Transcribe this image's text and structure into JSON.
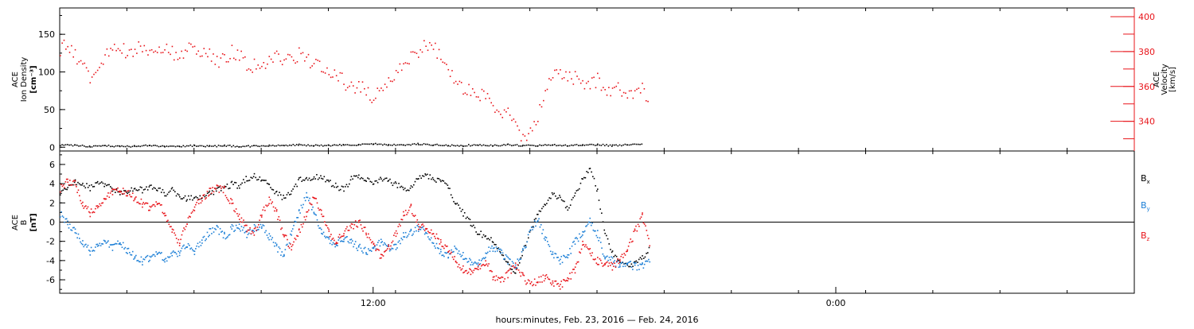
{
  "colors": {
    "black": "#000000",
    "red": "#e8141a",
    "blue": "#1c7fd6"
  },
  "xlabel": "hours:minutes, Feb. 23, 2016 — Feb. 24, 2016",
  "chart_data": [
    {
      "type": "scatter",
      "ylabel_lines": [
        "ACE",
        "Ion Density"
      ],
      "ylabel_unit": "[cm⁻³]",
      "yticks": [
        0,
        50,
        100,
        150
      ],
      "ylim": [
        -5,
        185
      ],
      "y2label_lines": [
        "ACE",
        "Velocity",
        "[km/s]"
      ],
      "y2ticks": [
        340,
        360,
        380,
        400
      ],
      "y2lim": [
        323,
        405
      ],
      "xticks": [
        "12:00",
        "0:00"
      ],
      "series": [
        {
          "color": "black",
          "axis": "left",
          "x": [
            0,
            1,
            2,
            3,
            4,
            5,
            6,
            7,
            8,
            9,
            10,
            11,
            12,
            13,
            14,
            15,
            16,
            17,
            18,
            19,
            20,
            21,
            22,
            23,
            24,
            25,
            26,
            27,
            28,
            29,
            30,
            31,
            32,
            33,
            34,
            35,
            36,
            37,
            38,
            39
          ],
          "y": [
            4,
            3,
            2,
            3,
            2,
            2,
            3,
            2,
            2,
            3,
            2,
            3,
            2,
            2,
            3,
            3,
            4,
            3,
            3,
            4,
            4,
            5,
            4,
            4,
            5,
            4,
            3,
            3,
            4,
            3,
            4,
            3,
            3,
            4,
            3,
            4,
            4,
            3,
            4,
            5
          ]
        },
        {
          "color": "red",
          "axis": "right",
          "x": [
            0,
            0.5,
            1,
            1.5,
            2,
            2.5,
            3,
            3.5,
            4,
            4.5,
            5,
            5.5,
            6,
            6.5,
            7,
            7.5,
            8,
            8.5,
            9,
            9.5,
            10,
            10.5,
            11,
            11.5,
            12,
            12.5,
            13,
            13.5,
            14,
            14.5,
            15,
            15.5,
            16,
            16.5,
            17,
            17.5,
            18,
            18.5,
            19,
            19.5,
            20,
            20.5,
            21,
            21.5,
            22,
            22.5,
            23,
            23.5,
            24,
            24.5,
            25,
            25.5,
            26,
            26.5,
            27,
            27.5,
            28,
            28.5,
            29,
            29.5,
            30,
            30.5,
            31,
            31.5,
            32,
            32.5,
            33,
            33.5,
            34,
            34.5,
            35,
            35.5,
            36,
            36.5,
            37,
            37.5,
            38,
            38.5,
            39,
            39.5
          ],
          "y": [
            382,
            385,
            378,
            372,
            366,
            370,
            378,
            384,
            382,
            380,
            382,
            384,
            380,
            382,
            384,
            380,
            378,
            382,
            383,
            381,
            378,
            375,
            376,
            380,
            378,
            373,
            372,
            374,
            375,
            377,
            376,
            376,
            379,
            376,
            374,
            370,
            366,
            368,
            363,
            360,
            361,
            358,
            352,
            360,
            364,
            368,
            374,
            377,
            380,
            384,
            383,
            376,
            370,
            364,
            360,
            359,
            357,
            353,
            350,
            346,
            344,
            338,
            331,
            334,
            342,
            360,
            366,
            368,
            366,
            365,
            363,
            361,
            364,
            360,
            356,
            360,
            354,
            356,
            360,
            352
          ]
        }
      ]
    },
    {
      "type": "scatter",
      "ylabel_lines": [
        "ACE",
        "B"
      ],
      "ylabel_unit": "[nT]",
      "yticks": [
        -6,
        -4,
        -2,
        0,
        2,
        4,
        6
      ],
      "ylim": [
        -7.4,
        7.4
      ],
      "xticks": [
        "12:00",
        "0:00"
      ],
      "legend": [
        "Bx",
        "By",
        "Bz"
      ],
      "series": [
        {
          "name": "Bx",
          "color": "black",
          "x": [
            0,
            0.5,
            1,
            1.5,
            2,
            2.5,
            3,
            3.5,
            4,
            4.5,
            5,
            5.5,
            6,
            6.5,
            7,
            7.5,
            8,
            8.5,
            9,
            9.5,
            10,
            10.5,
            11,
            11.5,
            12,
            12.5,
            13,
            13.5,
            14,
            14.5,
            15,
            15.5,
            16,
            16.5,
            17,
            17.5,
            18,
            18.5,
            19,
            19.5,
            20,
            20.5,
            21,
            21.5,
            22,
            22.5,
            23,
            23.5,
            24,
            24.5,
            25,
            25.5,
            26,
            26.5,
            27,
            27.5,
            28,
            28.5,
            29,
            29.5,
            30,
            30.5,
            31,
            31.5,
            32,
            32.5,
            33,
            33.5,
            34,
            34.5,
            35,
            35.5,
            36,
            36.5,
            37,
            37.5,
            38,
            38.5,
            39,
            39.5
          ],
          "y": [
            3.2,
            3.8,
            4.2,
            4.0,
            3.6,
            4.3,
            4.0,
            3.5,
            3.0,
            3.2,
            3.6,
            3.4,
            3.8,
            3.5,
            3.0,
            3.4,
            2.8,
            2.5,
            2.6,
            2.8,
            3.0,
            3.4,
            3.6,
            4.0,
            3.8,
            4.6,
            4.8,
            4.6,
            3.8,
            3.0,
            2.6,
            3.2,
            4.4,
            4.6,
            4.8,
            4.7,
            4.2,
            3.8,
            3.4,
            4.6,
            4.8,
            4.5,
            4.0,
            4.6,
            4.3,
            4.0,
            3.5,
            3.6,
            4.8,
            5.0,
            4.6,
            4.3,
            3.6,
            2.0,
            1.0,
            0.0,
            -1.0,
            -1.4,
            -2.0,
            -3.0,
            -4.4,
            -5.4,
            -3.0,
            -1.0,
            1.0,
            2.0,
            3.0,
            2.5,
            1.5,
            2.8,
            4.5,
            5.8,
            3.2,
            -1.0,
            -3.2,
            -4.0,
            -4.4,
            -4.2,
            -3.6,
            -2.8
          ]
        },
        {
          "name": "By",
          "color": "blue",
          "x": [
            0,
            0.5,
            1,
            1.5,
            2,
            2.5,
            3,
            3.5,
            4,
            4.5,
            5,
            5.5,
            6,
            6.5,
            7,
            7.5,
            8,
            8.5,
            9,
            9.5,
            10,
            10.5,
            11,
            11.5,
            12,
            12.5,
            13,
            13.5,
            14,
            14.5,
            15,
            15.5,
            16,
            16.5,
            17,
            17.5,
            18,
            18.5,
            19,
            19.5,
            20,
            20.5,
            21,
            21.5,
            22,
            22.5,
            23,
            23.5,
            24,
            24.5,
            25,
            25.5,
            26,
            26.5,
            27,
            27.5,
            28,
            28.5,
            29,
            29.5,
            30,
            30.5,
            31,
            31.5,
            32,
            32.5,
            33,
            33.5,
            34,
            34.5,
            35,
            35.5,
            36,
            36.5,
            37,
            37.5,
            38,
            38.5,
            39,
            39.5
          ],
          "y": [
            1.0,
            0.0,
            -1.0,
            -2.0,
            -3.0,
            -2.4,
            -2.0,
            -2.6,
            -2.0,
            -3.0,
            -3.5,
            -4.0,
            -3.6,
            -3.0,
            -3.8,
            -3.4,
            -3.0,
            -2.4,
            -3.0,
            -1.8,
            -1.0,
            -0.6,
            -1.4,
            -0.6,
            -0.4,
            -1.2,
            -0.6,
            -0.2,
            -1.4,
            -2.6,
            -3.4,
            -1.0,
            1.0,
            3.0,
            1.0,
            -1.0,
            -1.8,
            -2.2,
            -1.6,
            -2.0,
            -2.6,
            -3.0,
            -2.6,
            -2.0,
            -2.6,
            -2.4,
            -1.4,
            -1.0,
            -0.6,
            -1.0,
            -2.0,
            -3.0,
            -3.6,
            -2.6,
            -3.4,
            -4.0,
            -4.2,
            -3.2,
            -2.6,
            -3.0,
            -4.0,
            -4.6,
            -3.0,
            -1.0,
            0.4,
            -1.6,
            -3.2,
            -4.0,
            -3.4,
            -2.0,
            -1.0,
            0.2,
            -1.2,
            -3.6,
            -4.0,
            -4.4,
            -4.2,
            -4.6,
            -4.4,
            -4.0
          ]
        },
        {
          "name": "Bz",
          "color": "red",
          "x": [
            0,
            0.5,
            1,
            1.5,
            2,
            2.5,
            3,
            3.5,
            4,
            4.5,
            5,
            5.5,
            6,
            6.5,
            7,
            7.5,
            8,
            8.5,
            9,
            9.5,
            10,
            10.5,
            11,
            11.5,
            12,
            12.5,
            13,
            13.5,
            14,
            14.5,
            15,
            15.5,
            16,
            16.5,
            17,
            17.5,
            18,
            18.5,
            19,
            19.5,
            20,
            20.5,
            21,
            21.5,
            22,
            22.5,
            23,
            23.5,
            24,
            24.5,
            25,
            25.5,
            26,
            26.5,
            27,
            27.5,
            28,
            28.5,
            29,
            29.5,
            30,
            30.5,
            31,
            31.5,
            32,
            32.5,
            33,
            33.5,
            34,
            34.5,
            35,
            35.5,
            36,
            36.5,
            37,
            37.5,
            38,
            38.5,
            39,
            39.5
          ],
          "y": [
            3.6,
            4.4,
            4.0,
            2.0,
            1.0,
            1.6,
            2.4,
            3.2,
            3.4,
            3.0,
            2.6,
            2.0,
            1.6,
            2.2,
            1.0,
            -1.0,
            -2.0,
            0.0,
            1.6,
            2.6,
            3.2,
            3.6,
            3.4,
            2.0,
            0.6,
            -0.6,
            -1.0,
            1.0,
            2.4,
            1.0,
            -1.4,
            -2.6,
            -1.0,
            1.0,
            2.6,
            1.0,
            -1.0,
            -2.0,
            -1.0,
            -0.4,
            0.0,
            -1.0,
            -2.2,
            -3.6,
            -2.6,
            -1.0,
            0.8,
            1.6,
            -0.4,
            -0.6,
            -1.0,
            -2.0,
            -3.0,
            -4.0,
            -4.8,
            -5.0,
            -4.6,
            -4.0,
            -5.6,
            -6.0,
            -5.4,
            -4.4,
            -5.6,
            -6.6,
            -6.0,
            -5.6,
            -6.2,
            -6.6,
            -5.8,
            -5.0,
            -2.0,
            -3.0,
            -4.0,
            -4.2,
            -4.6,
            -3.8,
            -2.8,
            -1.0,
            0.8,
            -2.4
          ]
        }
      ]
    }
  ]
}
